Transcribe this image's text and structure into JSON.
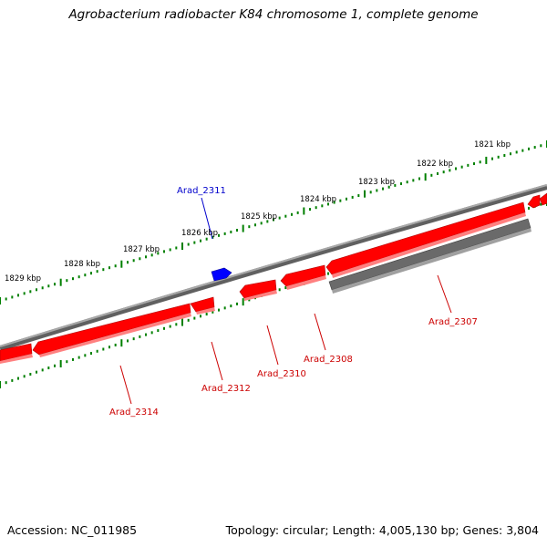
{
  "title": "Agrobacterium radiobacter K84 chromosome 1, complete genome",
  "footer": {
    "accession": "Accession: NC_011985",
    "summary": "Topology: circular; Length: 4,005,130 bp; Genes: 3,804"
  },
  "colors": {
    "forward_gene": "#0000ff",
    "reverse_gene": "#ff0000",
    "other_feature": "#666666",
    "backbone": "#808080",
    "tick": "#008000"
  },
  "ticks": [
    {
      "label": "1821 kbp"
    },
    {
      "label": "1822 kbp"
    },
    {
      "label": "1823 kbp"
    },
    {
      "label": "1824 kbp"
    },
    {
      "label": "1825 kbp"
    },
    {
      "label": "1826 kbp"
    },
    {
      "label": "1827 kbp"
    },
    {
      "label": "1828 kbp"
    },
    {
      "label": "1829 kbp"
    }
  ],
  "genes": [
    {
      "label": "Arad_2311",
      "strand": "forward"
    },
    {
      "label": "Arad_2307",
      "strand": "reverse"
    },
    {
      "label": "Arad_2308",
      "strand": "reverse"
    },
    {
      "label": "Arad_2310",
      "strand": "reverse"
    },
    {
      "label": "Arad_2312",
      "strand": "reverse"
    },
    {
      "label": "Arad_2314",
      "strand": "reverse"
    }
  ]
}
